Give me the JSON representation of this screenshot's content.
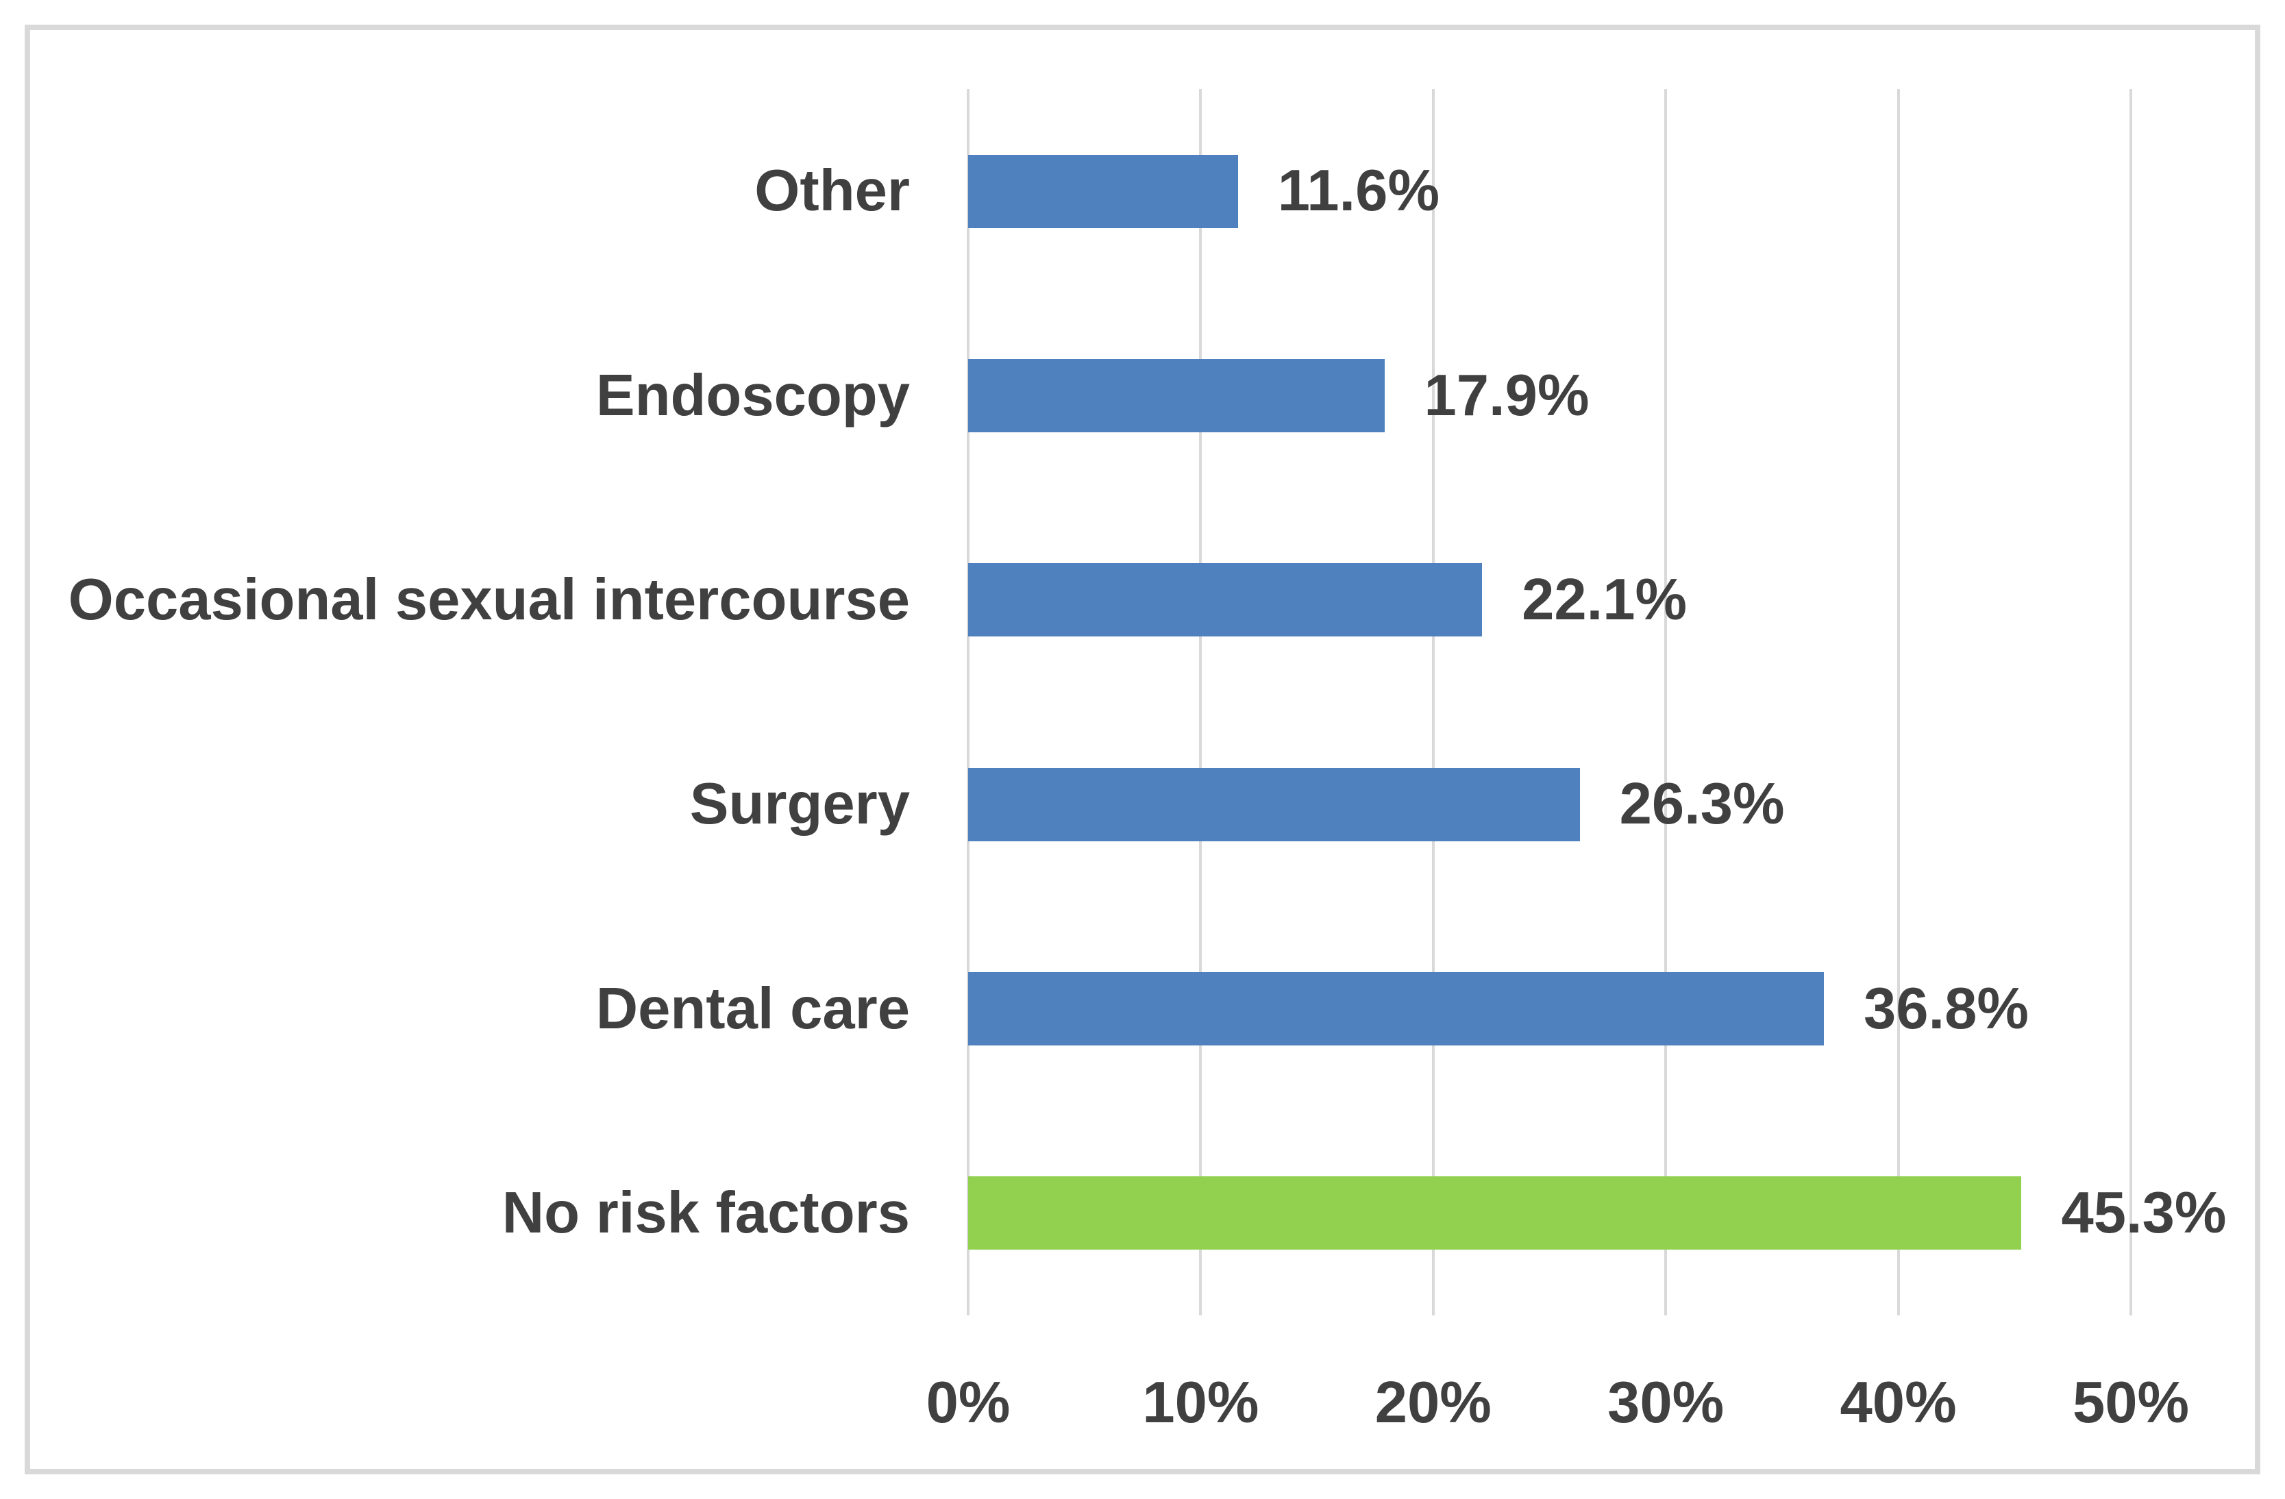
{
  "chart_data": {
    "type": "bar",
    "orientation": "horizontal",
    "title": "",
    "xlabel": "",
    "ylabel": "",
    "categories": [
      "Other",
      "Endoscopy",
      "Occasional sexual intercourse",
      "Surgery",
      "Dental care",
      "No risk factors"
    ],
    "values": [
      11.6,
      17.9,
      22.1,
      26.3,
      36.8,
      45.3
    ],
    "value_labels": [
      "11.6%",
      "17.9%",
      "22.1%",
      "26.3%",
      "36.8%",
      "45.3%"
    ],
    "bar_colors": [
      "#4E81BD",
      "#4E81BD",
      "#4E81BD",
      "#4E81BD",
      "#4E81BD",
      "#92D050"
    ],
    "xlim": [
      0,
      50
    ],
    "x_ticks": [
      0,
      10,
      20,
      30,
      40,
      50
    ],
    "x_tick_labels": [
      "0%",
      "10%",
      "20%",
      "30%",
      "40%",
      "50%"
    ],
    "grid": "vertical-only",
    "legend": "none"
  },
  "colors": {
    "bar_blue": "#4E81BD",
    "bar_green": "#92D050",
    "gridline": "#D9D9D9",
    "frame_border": "#D9D9D9",
    "text": "#404040",
    "background": "#FFFFFF"
  }
}
